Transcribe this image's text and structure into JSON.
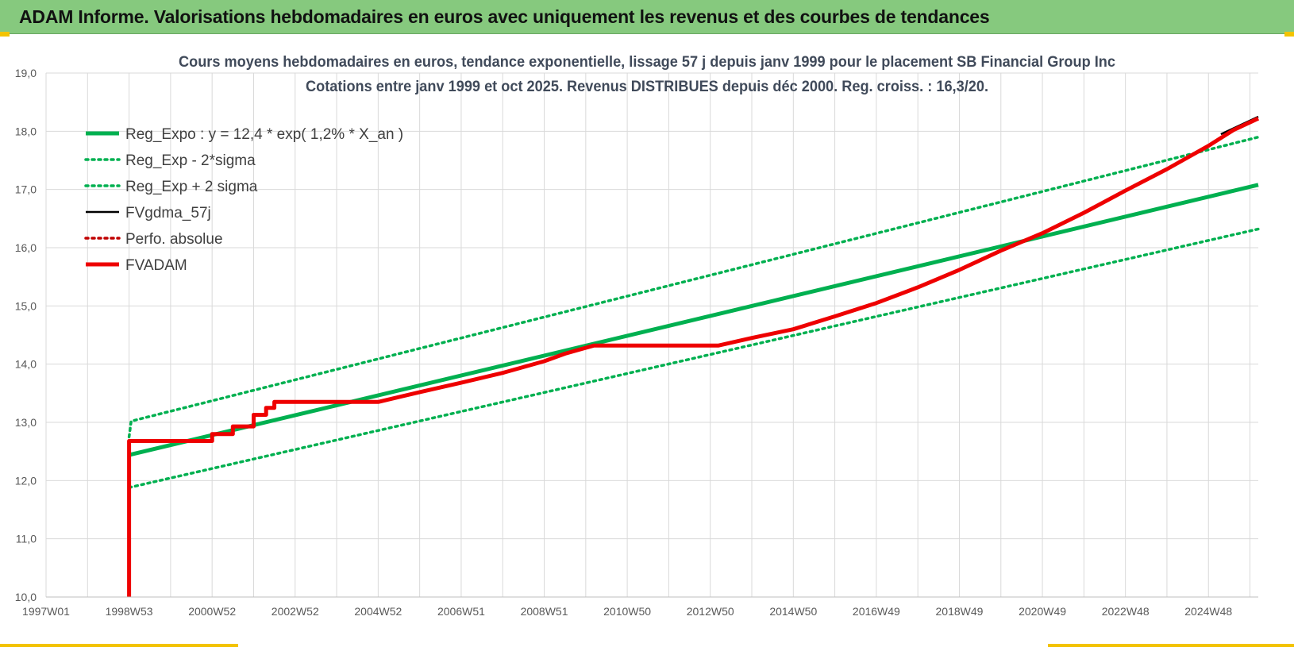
{
  "header": {
    "title": "ADAM Informe. Valorisations hebdomadaires en euros avec uniquement les revenus et des courbes de tendances"
  },
  "colors": {
    "header_bg": "#86c97e",
    "trend_green": "#00b050",
    "fvadam_red": "#ee0000",
    "fvgdma_black": "#000000",
    "perfo_darkred": "#c00000",
    "grid": "#d9d9d9"
  },
  "chart_data": {
    "type": "line",
    "title": "Cours moyens hebdomadaires en euros, tendance exponentielle, lissage 57 j depuis janv 1999 pour le placement SB Financial Group Inc",
    "subtitle": "Cotations entre janv 1999 et oct 2025. Revenus DISTRIBUES depuis déc 2000. Reg. croiss. : 16,3/20.",
    "xlabel": "",
    "ylabel": "",
    "x_tick_labels": [
      "1997W01",
      "1998W53",
      "2000W52",
      "2002W52",
      "2004W52",
      "2006W51",
      "2008W51",
      "2010W50",
      "2012W50",
      "2014W50",
      "2016W49",
      "2018W49",
      "2020W49",
      "2022W48",
      "2024W48"
    ],
    "x_tick_values": [
      1997.0,
      1999.0,
      2001.0,
      2003.0,
      2005.0,
      2007.0,
      2009.0,
      2011.0,
      2013.0,
      2015.0,
      2017.0,
      2019.0,
      2021.0,
      2023.0,
      2025.0
    ],
    "xlim": [
      1997.0,
      2026.2
    ],
    "ylim": [
      10.0,
      19.0
    ],
    "y_tick_labels": [
      "10,0",
      "11,0",
      "12,0",
      "13,0",
      "14,0",
      "15,0",
      "16,0",
      "17,0",
      "18,0",
      "19,0"
    ],
    "y_tick_values": [
      10,
      11,
      12,
      13,
      14,
      15,
      16,
      17,
      18,
      19
    ],
    "grid": true,
    "legend_position": "top-left",
    "series": [
      {
        "name": "Reg_Expo : y = 12,4 * exp( 1,2% *  X_an )",
        "key": "reg_expo",
        "style": "solid-thick",
        "color": "#00b050",
        "x": [
          1999.0,
          2026.2
        ],
        "y": [
          12.44,
          17.08
        ]
      },
      {
        "name": "Reg_Exp - 2*sigma",
        "key": "reg_minus",
        "style": "dotted",
        "color": "#00b050",
        "x": [
          1999.0,
          2026.2
        ],
        "y": [
          11.88,
          16.32
        ]
      },
      {
        "name": "Reg_Exp + 2 sigma",
        "key": "reg_plus",
        "style": "dotted",
        "color": "#00b050",
        "x": [
          1999.0,
          1999.05,
          2026.2
        ],
        "y": [
          12.75,
          13.02,
          17.9
        ]
      },
      {
        "name": "FVgdma_57j",
        "key": "fvgdma",
        "style": "solid",
        "color": "#000000",
        "x": [
          2025.3,
          2026.2
        ],
        "y": [
          17.95,
          18.25
        ]
      },
      {
        "name": "Perfo. absolue",
        "key": "perfo",
        "style": "dotted",
        "color": "#c00000",
        "x": [],
        "y": []
      },
      {
        "name": "FVADAM",
        "key": "fvadam",
        "style": "solid-thick",
        "color": "#ee0000",
        "x": [
          1999.0,
          1999.0,
          1999.0,
          2001.0,
          2001.0,
          2001.5,
          2001.5,
          2002.0,
          2002.0,
          2002.3,
          2002.3,
          2002.5,
          2002.5,
          2005.0,
          2006.0,
          2007.0,
          2008.0,
          2009.0,
          2009.5,
          2010.0,
          2010.2,
          2013.2,
          2014.0,
          2015.0,
          2016.0,
          2017.0,
          2018.0,
          2019.0,
          2020.0,
          2021.0,
          2022.0,
          2023.0,
          2024.0,
          2025.0,
          2025.6,
          2026.2
        ],
        "y": [
          10.0,
          10.0,
          12.68,
          12.68,
          12.8,
          12.8,
          12.93,
          12.93,
          13.13,
          13.13,
          13.25,
          13.25,
          13.35,
          13.35,
          13.52,
          13.68,
          13.85,
          14.05,
          14.18,
          14.28,
          14.32,
          14.32,
          14.45,
          14.6,
          14.82,
          15.05,
          15.32,
          15.62,
          15.95,
          16.25,
          16.6,
          16.98,
          17.35,
          17.75,
          18.02,
          18.22
        ]
      }
    ]
  }
}
